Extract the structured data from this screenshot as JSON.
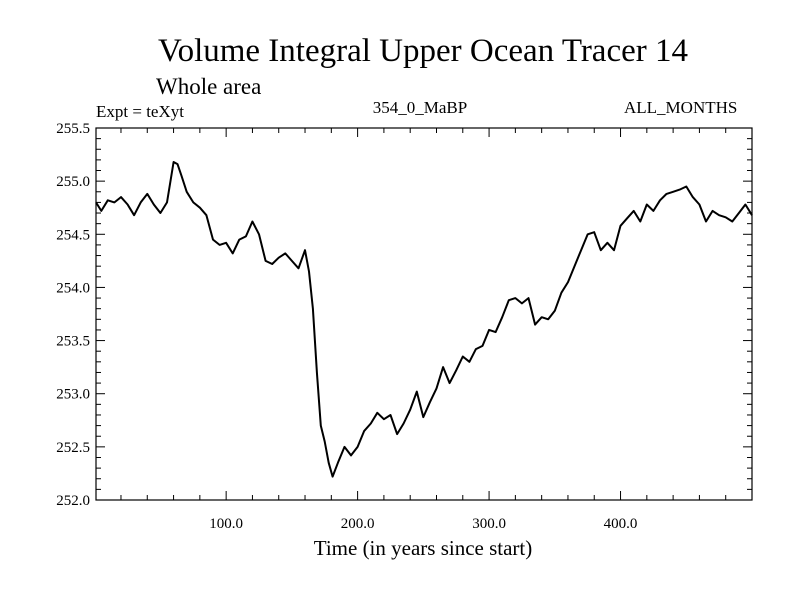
{
  "chart_data": {
    "type": "line",
    "title": "Volume Integral Upper Ocean Tracer 14",
    "subtitle": "Whole area",
    "annotation_left": "Expt = teXyt",
    "annotation_center": "354_0_MaBP",
    "annotation_right": "ALL_MONTHS",
    "xlabel": "Time (in years since start)",
    "ylabel": "",
    "xlim": [
      1,
      500
    ],
    "ylim": [
      252.0,
      255.5
    ],
    "xticks": [
      100,
      200,
      300,
      400
    ],
    "xtick_labels": [
      "100.0",
      "200.0",
      "300.0",
      "400.0"
    ],
    "yticks": [
      252.0,
      252.5,
      253.0,
      253.5,
      254.0,
      254.5,
      255.0,
      255.5
    ],
    "ytick_labels": [
      "252.0",
      "252.5",
      "253.0",
      "253.5",
      "254.0",
      "254.5",
      "255.0",
      "255.5"
    ],
    "grid": false,
    "series": [
      {
        "color": "#000000",
        "x": [
          1,
          5,
          10,
          15,
          20,
          25,
          30,
          35,
          40,
          45,
          50,
          55,
          60,
          63,
          66,
          70,
          75,
          80,
          85,
          90,
          95,
          100,
          105,
          110,
          115,
          120,
          125,
          130,
          135,
          140,
          145,
          150,
          155,
          160,
          163,
          166,
          169,
          172,
          175,
          178,
          181,
          185,
          190,
          195,
          200,
          205,
          210,
          215,
          220,
          225,
          230,
          235,
          240,
          245,
          250,
          255,
          260,
          265,
          270,
          275,
          280,
          285,
          290,
          295,
          300,
          305,
          310,
          315,
          320,
          325,
          330,
          335,
          340,
          345,
          350,
          355,
          360,
          365,
          370,
          375,
          380,
          385,
          390,
          395,
          400,
          405,
          410,
          415,
          420,
          425,
          430,
          435,
          440,
          445,
          450,
          455,
          460,
          465,
          470,
          475,
          480,
          485,
          490,
          495,
          500
        ],
        "y": [
          254.8,
          254.72,
          254.82,
          254.8,
          254.85,
          254.78,
          254.68,
          254.8,
          254.88,
          254.78,
          254.7,
          254.8,
          255.18,
          255.16,
          255.05,
          254.9,
          254.8,
          254.75,
          254.68,
          254.45,
          254.4,
          254.42,
          254.32,
          254.45,
          254.48,
          254.62,
          254.5,
          254.25,
          254.22,
          254.28,
          254.32,
          254.25,
          254.18,
          254.35,
          254.15,
          253.8,
          253.2,
          252.7,
          252.55,
          252.35,
          252.22,
          252.35,
          252.5,
          252.42,
          252.5,
          252.65,
          252.72,
          252.82,
          252.76,
          252.8,
          252.62,
          252.72,
          252.85,
          253.02,
          252.78,
          252.92,
          253.05,
          253.25,
          253.1,
          253.22,
          253.35,
          253.3,
          253.42,
          253.45,
          253.6,
          253.58,
          253.72,
          253.88,
          253.9,
          253.85,
          253.9,
          253.65,
          253.72,
          253.7,
          253.78,
          253.95,
          254.05,
          254.2,
          254.35,
          254.5,
          254.52,
          254.35,
          254.42,
          254.35,
          254.58,
          254.65,
          254.72,
          254.62,
          254.78,
          254.72,
          254.82,
          254.88,
          254.9,
          254.92,
          254.95,
          254.85,
          254.78,
          254.62,
          254.72,
          254.68,
          254.66,
          254.62,
          254.7,
          254.78,
          254.68
        ]
      }
    ]
  }
}
